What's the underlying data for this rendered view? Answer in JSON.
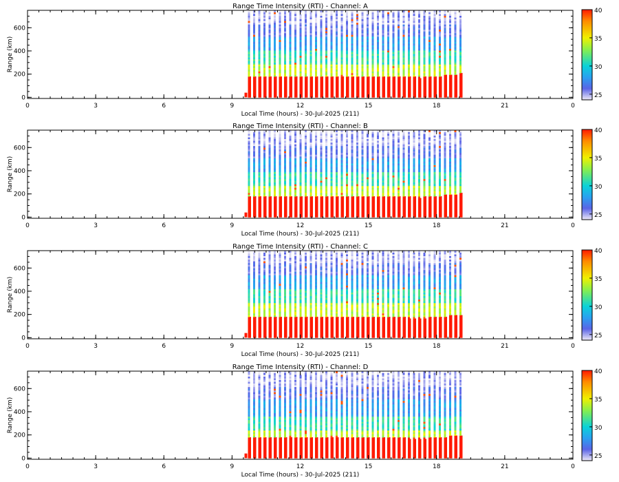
{
  "chart_data": [
    {
      "type": "heatmap",
      "title": "Range Time Intensity (RTI) - Channel: A",
      "xlabel": "Local Time (hours) - 30-Jul-2025 (211)",
      "ylabel": "Range (km)",
      "xlim": [
        0,
        24
      ],
      "ylim": [
        -10,
        750
      ],
      "x_ticks": [
        "0",
        "3",
        "6",
        "9",
        "12",
        "15",
        "18",
        "21",
        "0"
      ],
      "y_ticks": [
        "0",
        "200",
        "400",
        "600"
      ],
      "colorbar_ticks": [
        "25",
        "30",
        "35",
        "40"
      ],
      "color_range": [
        24,
        40
      ],
      "data_start_hour": 9.7,
      "data_end_hour": 19.1,
      "bottom_layer_top_km": 175,
      "bands_km": [
        [
          0,
          175,
          40
        ],
        [
          175,
          280,
          34
        ],
        [
          280,
          400,
          31
        ],
        [
          400,
          520,
          28
        ],
        [
          520,
          620,
          26
        ],
        [
          620,
          720,
          25
        ]
      ]
    },
    {
      "type": "heatmap",
      "title": "Range Time Intensity (RTI) - Channel: B",
      "xlabel": "Local Time (hours) - 30-Jul-2025 (211)",
      "ylabel": "Range (km)",
      "xlim": [
        0,
        24
      ],
      "ylim": [
        -10,
        750
      ],
      "x_ticks": [
        "0",
        "3",
        "6",
        "9",
        "12",
        "15",
        "18",
        "21",
        "0"
      ],
      "y_ticks": [
        "0",
        "200",
        "400",
        "600"
      ],
      "colorbar_ticks": [
        "25",
        "30",
        "35",
        "40"
      ],
      "color_range": [
        24,
        40
      ],
      "data_start_hour": 9.7,
      "data_end_hour": 19.1,
      "bottom_layer_top_km": 175,
      "bands_km": [
        [
          0,
          175,
          40
        ],
        [
          175,
          270,
          34
        ],
        [
          270,
          390,
          31
        ],
        [
          390,
          510,
          28
        ],
        [
          510,
          610,
          26
        ],
        [
          610,
          720,
          25
        ]
      ]
    },
    {
      "type": "heatmap",
      "title": "Range Time Intensity (RTI) - Channel: C",
      "xlabel": "Local Time (hours) - 30-Jul-2025 (211)",
      "ylabel": "Range (km)",
      "xlim": [
        0,
        24
      ],
      "ylim": [
        -10,
        750
      ],
      "x_ticks": [
        "0",
        "3",
        "6",
        "9",
        "12",
        "15",
        "18",
        "21",
        "0"
      ],
      "y_ticks": [
        "0",
        "200",
        "400",
        "600"
      ],
      "colorbar_ticks": [
        "25",
        "30",
        "35",
        "40"
      ],
      "color_range": [
        24,
        40
      ],
      "data_start_hour": 9.7,
      "data_end_hour": 19.1,
      "bottom_layer_top_km": 170,
      "bands_km": [
        [
          0,
          170,
          40
        ],
        [
          170,
          300,
          34
        ],
        [
          300,
          420,
          31
        ],
        [
          420,
          540,
          28
        ],
        [
          540,
          640,
          26
        ],
        [
          640,
          730,
          25
        ]
      ]
    },
    {
      "type": "heatmap",
      "title": "Range Time Intensity (RTI) - Channel: D",
      "xlabel": "Local Time (hours) - 30-Jul-2025 (211)",
      "ylabel": "Range (km)",
      "xlim": [
        0,
        24
      ],
      "ylim": [
        -10,
        750
      ],
      "x_ticks": [
        "0",
        "3",
        "6",
        "9",
        "12",
        "15",
        "18",
        "21",
        "0"
      ],
      "y_ticks": [
        "0",
        "200",
        "400",
        "600"
      ],
      "colorbar_ticks": [
        "25",
        "30",
        "35",
        "40"
      ],
      "color_range": [
        24,
        40
      ],
      "data_start_hour": 9.7,
      "data_end_hour": 19.1,
      "bottom_layer_top_km": 170,
      "bands_km": [
        [
          0,
          170,
          40
        ],
        [
          170,
          230,
          34
        ],
        [
          230,
          360,
          31
        ],
        [
          360,
          500,
          28
        ],
        [
          500,
          610,
          26
        ],
        [
          610,
          730,
          25
        ]
      ]
    }
  ],
  "colors": {
    "v24": "#ece8f6",
    "v26": "#5a64e6",
    "v28": "#2aa0f0",
    "v30": "#0ad2d8",
    "v33": "#8cf048",
    "v35": "#f0f000",
    "v38": "#ff8a00",
    "v40": "#ff1a00"
  }
}
